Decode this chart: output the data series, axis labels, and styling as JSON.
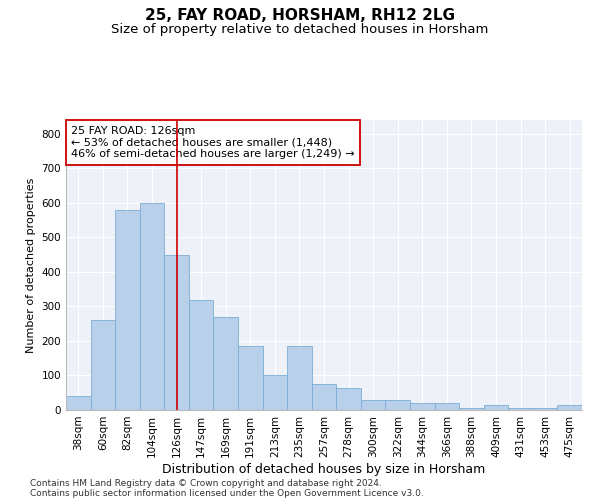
{
  "title1": "25, FAY ROAD, HORSHAM, RH12 2LG",
  "title2": "Size of property relative to detached houses in Horsham",
  "xlabel": "Distribution of detached houses by size in Horsham",
  "ylabel": "Number of detached properties",
  "categories": [
    "38sqm",
    "60sqm",
    "82sqm",
    "104sqm",
    "126sqm",
    "147sqm",
    "169sqm",
    "191sqm",
    "213sqm",
    "235sqm",
    "257sqm",
    "278sqm",
    "300sqm",
    "322sqm",
    "344sqm",
    "366sqm",
    "388sqm",
    "409sqm",
    "431sqm",
    "453sqm",
    "475sqm"
  ],
  "values": [
    40,
    260,
    580,
    600,
    450,
    320,
    270,
    185,
    100,
    185,
    75,
    65,
    30,
    30,
    20,
    20,
    5,
    15,
    5,
    5,
    15
  ],
  "bar_color": "#b8d0ea",
  "bar_edge_color": "#7aadd4",
  "red_line_index": 4,
  "red_line_color": "#cc0000",
  "annotation_box_color": "#cc0000",
  "annotation_text": "25 FAY ROAD: 126sqm\n← 53% of detached houses are smaller (1,448)\n46% of semi-detached houses are larger (1,249) →",
  "ylim": [
    0,
    840
  ],
  "yticks": [
    0,
    100,
    200,
    300,
    400,
    500,
    600,
    700,
    800
  ],
  "footer1": "Contains HM Land Registry data © Crown copyright and database right 2024.",
  "footer2": "Contains public sector information licensed under the Open Government Licence v3.0.",
  "bg_color": "#eef2f8",
  "grid_color": "#ffffff",
  "title1_fontsize": 11,
  "title2_fontsize": 9.5,
  "xlabel_fontsize": 9,
  "ylabel_fontsize": 8,
  "tick_fontsize": 7.5,
  "annotation_fontsize": 8,
  "footer_fontsize": 6.5
}
